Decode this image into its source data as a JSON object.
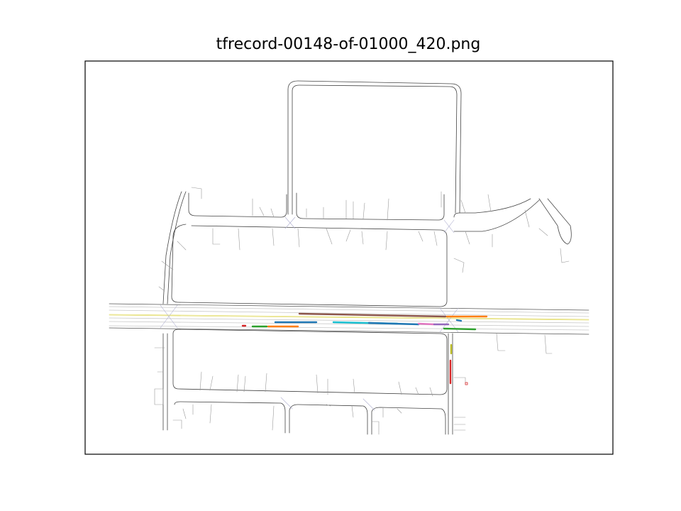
{
  "figure": {
    "title": "tfrecord-00148-of-01000_420.png"
  },
  "colors": {
    "background": "#ffffff",
    "frame": "#000000",
    "road_edge": "#333333",
    "lane_line": "#c8c8c8",
    "lane_center_yellow": "#e6e07a",
    "crosswalk": "#b0b0d0"
  },
  "agent_tracks": [
    {
      "color": "#8c564b"
    },
    {
      "color": "#ff7f0e"
    },
    {
      "color": "#1f77b4"
    },
    {
      "color": "#2ca02c"
    },
    {
      "color": "#ff7f0e"
    },
    {
      "color": "#d62728"
    },
    {
      "color": "#17becf"
    },
    {
      "color": "#1f77b4"
    },
    {
      "color": "#e377c2"
    },
    {
      "color": "#9467bd"
    },
    {
      "color": "#1f77b4"
    },
    {
      "color": "#2ca02c"
    },
    {
      "color": "#bcbd22"
    },
    {
      "color": "#d62728"
    }
  ]
}
